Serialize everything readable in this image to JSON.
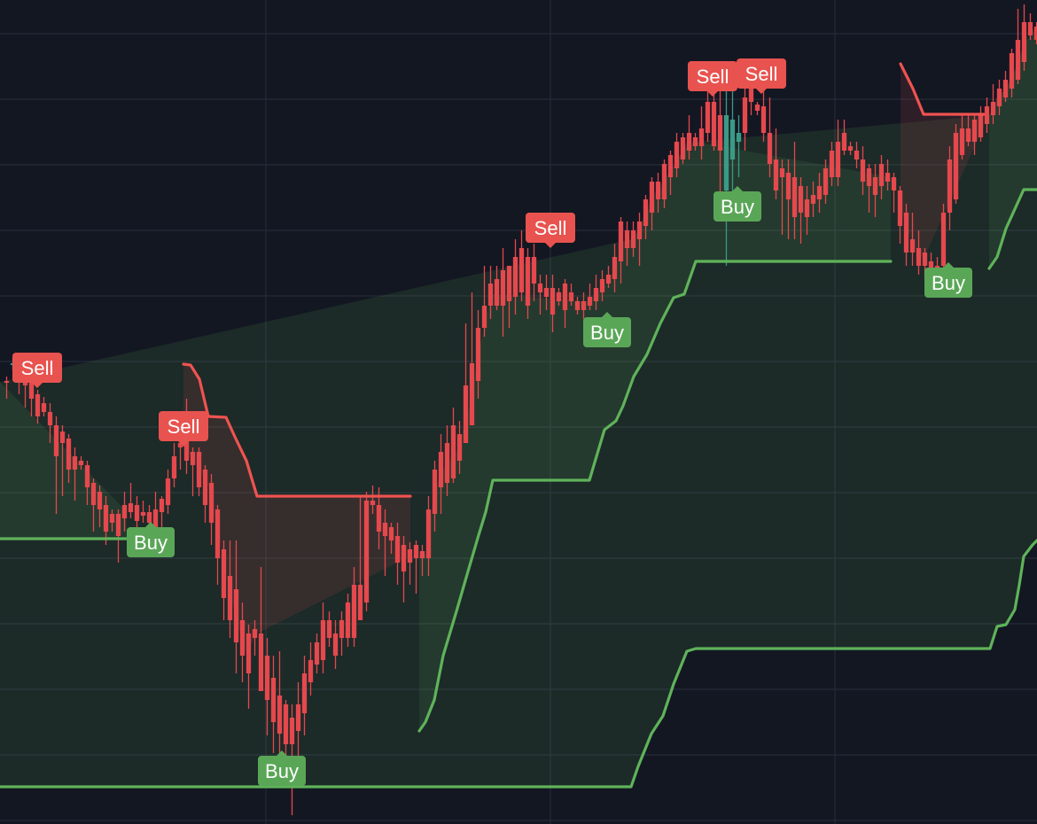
{
  "colors": {
    "background": "#131722",
    "grid": "#262b3a",
    "up": "#3b9a86",
    "down": "#e5484d",
    "buy_line": "#5fb35a",
    "sell_line": "#ef5350",
    "buy_label": "#5aa657",
    "sell_label": "#e8534f"
  },
  "chart_data": {
    "type": "candlestick",
    "title": "",
    "xlabel": "",
    "ylabel": "",
    "grid": true,
    "xlim": [
      0,
      146
    ],
    "ylim": [
      0,
      930
    ],
    "candles": [
      [
        1,
        430,
        432,
        425,
        450
      ],
      [
        2,
        412,
        410,
        405,
        418
      ],
      [
        3,
        418,
        425,
        410,
        445
      ],
      [
        4,
        420,
        435,
        410,
        460
      ],
      [
        5,
        430,
        450,
        420,
        470
      ],
      [
        6,
        445,
        470,
        440,
        478
      ],
      [
        7,
        455,
        465,
        448,
        470
      ],
      [
        8,
        465,
        480,
        455,
        500
      ],
      [
        9,
        480,
        515,
        470,
        580
      ],
      [
        10,
        487,
        500,
        480,
        560
      ],
      [
        11,
        495,
        530,
        490,
        545
      ],
      [
        12,
        515,
        530,
        505,
        565
      ],
      [
        13,
        520,
        525,
        515,
        530
      ],
      [
        14,
        525,
        550,
        520,
        570
      ],
      [
        15,
        545,
        570,
        540,
        600
      ],
      [
        16,
        555,
        575,
        548,
        595
      ],
      [
        17,
        570,
        600,
        560,
        615
      ],
      [
        18,
        580,
        590,
        575,
        600
      ],
      [
        19,
        580,
        605,
        575,
        635
      ],
      [
        20,
        570,
        585,
        555,
        600
      ],
      [
        21,
        568,
        578,
        545,
        585
      ],
      [
        22,
        570,
        588,
        560,
        600
      ],
      [
        23,
        578,
        582,
        565,
        590
      ],
      [
        24,
        578,
        590,
        570,
        600
      ],
      [
        25,
        575,
        595,
        555,
        600
      ],
      [
        26,
        563,
        578,
        560,
        600
      ],
      [
        27,
        540,
        570,
        530,
        580
      ],
      [
        28,
        515,
        540,
        500,
        550
      ],
      [
        29,
        500,
        505,
        490,
        530
      ],
      [
        30,
        490,
        520,
        450,
        535
      ],
      [
        31,
        510,
        525,
        505,
        560
      ],
      [
        32,
        510,
        550,
        505,
        560
      ],
      [
        33,
        530,
        570,
        525,
        590
      ],
      [
        34,
        545,
        590,
        535,
        615
      ],
      [
        35,
        575,
        630,
        570,
        660
      ],
      [
        36,
        620,
        675,
        610,
        700
      ],
      [
        37,
        650,
        700,
        610,
        720
      ],
      [
        38,
        665,
        725,
        610,
        760
      ],
      [
        39,
        700,
        740,
        680,
        770
      ],
      [
        40,
        715,
        760,
        705,
        800
      ],
      [
        41,
        710,
        720,
        700,
        740
      ],
      [
        42,
        715,
        780,
        640,
        780
      ],
      [
        43,
        740,
        790,
        720,
        830
      ],
      [
        44,
        765,
        815,
        740,
        850
      ],
      [
        45,
        785,
        828,
        735,
        850
      ],
      [
        46,
        795,
        840,
        790,
        860
      ],
      [
        47,
        810,
        840,
        795,
        920
      ],
      [
        48,
        795,
        825,
        770,
        870
      ],
      [
        49,
        760,
        805,
        740,
        830
      ],
      [
        50,
        745,
        770,
        725,
        785
      ],
      [
        51,
        725,
        750,
        715,
        760
      ],
      [
        52,
        700,
        745,
        680,
        760
      ],
      [
        53,
        700,
        720,
        690,
        730
      ],
      [
        54,
        715,
        740,
        700,
        755
      ],
      [
        55,
        700,
        720,
        690,
        740
      ],
      [
        56,
        680,
        720,
        670,
        730
      ],
      [
        57,
        660,
        720,
        640,
        730
      ],
      [
        58,
        660,
        700,
        560,
        700
      ],
      [
        59,
        565,
        680,
        555,
        690
      ],
      [
        60,
        565,
        570,
        548,
        580
      ],
      [
        61,
        570,
        600,
        550,
        620
      ],
      [
        62,
        590,
        605,
        575,
        650
      ],
      [
        63,
        595,
        610,
        590,
        625
      ],
      [
        64,
        605,
        635,
        590,
        660
      ],
      [
        65,
        615,
        645,
        605,
        680
      ],
      [
        66,
        620,
        635,
        612,
        660
      ],
      [
        67,
        615,
        630,
        610,
        670
      ],
      [
        68,
        622,
        630,
        615,
        650
      ],
      [
        69,
        575,
        630,
        560,
        650
      ],
      [
        70,
        530,
        580,
        520,
        600
      ],
      [
        71,
        510,
        550,
        490,
        580
      ],
      [
        72,
        500,
        545,
        480,
        560
      ],
      [
        73,
        480,
        540,
        460,
        545
      ],
      [
        74,
        490,
        520,
        475,
        535
      ],
      [
        75,
        435,
        500,
        365,
        500
      ],
      [
        76,
        410,
        480,
        330,
        480
      ],
      [
        77,
        370,
        430,
        350,
        450
      ],
      [
        78,
        345,
        370,
        300,
        380
      ],
      [
        79,
        320,
        345,
        300,
        360
      ],
      [
        80,
        315,
        345,
        300,
        350
      ],
      [
        81,
        305,
        345,
        280,
        380
      ],
      [
        82,
        300,
        340,
        300,
        370
      ],
      [
        83,
        290,
        335,
        270,
        355
      ],
      [
        84,
        280,
        330,
        260,
        340
      ],
      [
        85,
        290,
        345,
        280,
        360
      ],
      [
        86,
        290,
        320,
        275,
        340
      ],
      [
        87,
        320,
        330,
        310,
        355
      ],
      [
        88,
        325,
        335,
        310,
        350
      ],
      [
        89,
        325,
        355,
        310,
        375
      ],
      [
        90,
        330,
        340,
        325,
        345
      ],
      [
        91,
        320,
        350,
        315,
        370
      ],
      [
        92,
        330,
        340,
        320,
        345
      ],
      [
        93,
        340,
        350,
        335,
        355
      ],
      [
        94,
        340,
        350,
        330,
        360
      ],
      [
        95,
        335,
        345,
        320,
        350
      ],
      [
        96,
        325,
        340,
        310,
        350
      ],
      [
        97,
        315,
        330,
        305,
        340
      ],
      [
        98,
        310,
        320,
        300,
        325
      ],
      [
        99,
        290,
        315,
        275,
        330
      ],
      [
        100,
        250,
        295,
        245,
        320
      ],
      [
        101,
        260,
        280,
        250,
        300
      ],
      [
        102,
        260,
        280,
        250,
        290
      ],
      [
        103,
        250,
        270,
        240,
        300
      ],
      [
        104,
        225,
        255,
        220,
        270
      ],
      [
        105,
        205,
        240,
        200,
        260
      ],
      [
        106,
        205,
        225,
        195,
        240
      ],
      [
        107,
        185,
        225,
        180,
        235
      ],
      [
        108,
        175,
        200,
        170,
        220
      ],
      [
        109,
        160,
        190,
        150,
        200
      ],
      [
        110,
        155,
        180,
        150,
        185
      ],
      [
        111,
        150,
        170,
        130,
        180
      ],
      [
        112,
        155,
        165,
        150,
        170
      ],
      [
        113,
        145,
        165,
        120,
        180
      ],
      [
        114,
        115,
        150,
        100,
        160
      ],
      [
        115,
        115,
        165,
        90,
        170
      ],
      [
        116,
        130,
        170,
        90,
        230
      ],
      [
        117,
        215,
        130,
        95,
        300
      ],
      [
        118,
        180,
        135,
        90,
        225
      ],
      [
        119,
        160,
        150,
        130,
        200
      ],
      [
        120,
        110,
        150,
        100,
        170
      ],
      [
        121,
        100,
        115,
        80,
        130
      ],
      [
        122,
        118,
        125,
        115,
        130
      ],
      [
        123,
        120,
        150,
        100,
        160
      ],
      [
        124,
        150,
        185,
        110,
        200
      ],
      [
        125,
        180,
        215,
        145,
        225
      ],
      [
        126,
        190,
        200,
        180,
        265
      ],
      [
        127,
        195,
        225,
        180,
        270
      ],
      [
        128,
        200,
        245,
        160,
        270
      ],
      [
        129,
        210,
        240,
        200,
        275
      ],
      [
        130,
        225,
        245,
        210,
        265
      ],
      [
        131,
        220,
        230,
        205,
        245
      ],
      [
        132,
        210,
        225,
        195,
        240
      ],
      [
        133,
        190,
        220,
        180,
        230
      ],
      [
        134,
        170,
        200,
        160,
        210
      ],
      [
        135,
        160,
        200,
        135,
        210
      ],
      [
        136,
        150,
        170,
        135,
        175
      ],
      [
        137,
        165,
        170,
        160,
        175
      ],
      [
        138,
        170,
        180,
        160,
        190
      ],
      [
        139,
        180,
        205,
        165,
        220
      ],
      [
        140,
        190,
        210,
        185,
        240
      ],
      [
        141,
        200,
        220,
        185,
        245
      ],
      [
        142,
        185,
        210,
        175,
        225
      ],
      [
        143,
        195,
        205,
        180,
        215
      ],
      [
        144,
        200,
        215,
        195,
        240
      ],
      [
        145,
        215,
        255,
        210,
        275
      ],
      [
        146,
        240,
        285,
        230,
        300
      ],
      [
        147,
        270,
        285,
        240,
        300
      ],
      [
        148,
        280,
        300,
        260,
        310
      ],
      [
        149,
        285,
        300,
        280,
        315
      ],
      [
        150,
        295,
        305,
        285,
        310
      ],
      [
        151,
        300,
        305,
        290,
        320
      ],
      [
        152,
        240,
        300,
        230,
        310
      ],
      [
        153,
        180,
        240,
        165,
        260
      ],
      [
        154,
        150,
        225,
        140,
        230
      ],
      [
        155,
        145,
        175,
        130,
        180
      ],
      [
        156,
        145,
        160,
        130,
        165
      ],
      [
        157,
        135,
        160,
        130,
        175
      ],
      [
        158,
        130,
        155,
        120,
        160
      ],
      [
        159,
        120,
        140,
        110,
        150
      ],
      [
        160,
        115,
        130,
        95,
        140
      ],
      [
        161,
        100,
        120,
        90,
        130
      ],
      [
        162,
        90,
        110,
        80,
        115
      ],
      [
        163,
        60,
        100,
        55,
        110
      ],
      [
        164,
        45,
        90,
        10,
        95
      ],
      [
        165,
        25,
        70,
        5,
        80
      ],
      [
        166,
        25,
        40,
        15,
        45
      ],
      [
        167,
        30,
        45,
        25,
        50
      ]
    ],
    "buy_stop_segments": [
      {
        "name": "",
        "points": [
          [
            0,
            608
          ],
          [
            143,
            608
          ]
        ]
      },
      {
        "name": "",
        "points": [
          [
            0,
            888
          ],
          [
            712,
            888
          ],
          [
            720,
            865
          ],
          [
            735,
            828
          ],
          [
            748,
            808
          ],
          [
            760,
            772
          ],
          [
            775,
            735
          ],
          [
            785,
            732
          ],
          [
            1117,
            732
          ],
          [
            1125,
            707
          ],
          [
            1135,
            705
          ],
          [
            1145,
            688
          ],
          [
            1150,
            660
          ],
          [
            1155,
            628
          ],
          [
            1165,
            615
          ],
          [
            1170,
            610
          ]
        ]
      },
      {
        "name": "",
        "points": [
          [
            473,
            825
          ],
          [
            480,
            815
          ],
          [
            490,
            790
          ],
          [
            500,
            740
          ],
          [
            515,
            690
          ],
          [
            528,
            645
          ],
          [
            540,
            604
          ],
          [
            548,
            578
          ],
          [
            556,
            542
          ],
          [
            665,
            542
          ],
          [
            682,
            485
          ],
          [
            695,
            475
          ],
          [
            703,
            458
          ],
          [
            715,
            425
          ],
          [
            730,
            400
          ],
          [
            745,
            365
          ],
          [
            760,
            336
          ],
          [
            772,
            332
          ],
          [
            785,
            295
          ],
          [
            1005,
            295
          ]
        ]
      },
      {
        "name": "",
        "points": [
          [
            1116,
            303
          ],
          [
            1125,
            290
          ],
          [
            1135,
            258
          ],
          [
            1150,
            225
          ],
          [
            1155,
            214
          ],
          [
            1170,
            214
          ]
        ]
      }
    ],
    "sell_stop_segments": [
      {
        "name": "",
        "points": [
          [
            207,
            411
          ],
          [
            215,
            412
          ],
          [
            225,
            428
          ],
          [
            235,
            470
          ],
          [
            255,
            471
          ],
          [
            265,
            493
          ],
          [
            278,
            520
          ],
          [
            290,
            560
          ],
          [
            463,
            560
          ]
        ]
      },
      {
        "name": "",
        "points": [
          [
            1016,
            72
          ],
          [
            1030,
            100
          ],
          [
            1042,
            129
          ],
          [
            1110,
            129
          ]
        ]
      }
    ],
    "signals": [
      {
        "type": "sell",
        "text": "Sell",
        "x": 42,
        "y": 415
      },
      {
        "type": "sell",
        "text": "Sell",
        "x": 207,
        "y": 481
      },
      {
        "type": "buy",
        "text": "Buy",
        "x": 170,
        "y": 612
      },
      {
        "type": "buy",
        "text": "Buy",
        "x": 318,
        "y": 870
      },
      {
        "type": "sell",
        "text": "Sell",
        "x": 621,
        "y": 257
      },
      {
        "type": "buy",
        "text": "Buy",
        "x": 685,
        "y": 375
      },
      {
        "type": "sell",
        "text": "Sell",
        "x": 804,
        "y": 86
      },
      {
        "type": "sell",
        "text": "Sell",
        "x": 859,
        "y": 83
      },
      {
        "type": "buy",
        "text": "Buy",
        "x": 832,
        "y": 233
      },
      {
        "type": "buy",
        "text": "Buy",
        "x": 1070,
        "y": 319
      }
    ]
  }
}
